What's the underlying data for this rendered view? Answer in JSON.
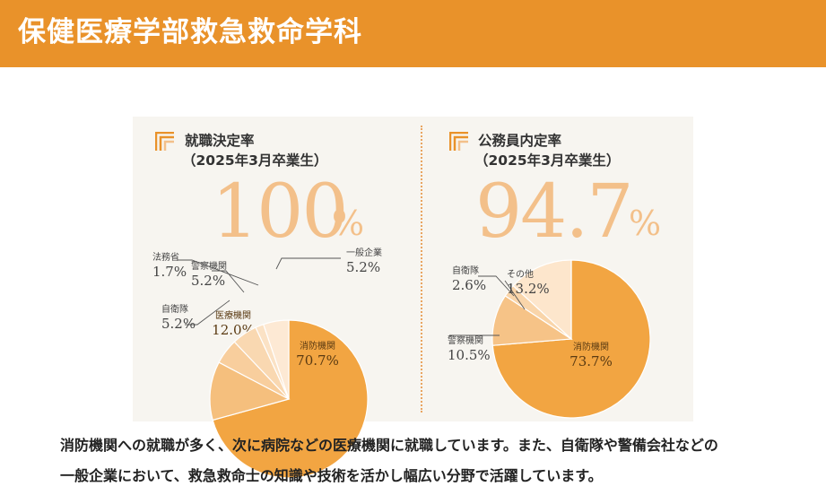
{
  "header": {
    "title": "保健医療学部救急救命学科"
  },
  "chart_data": [
    {
      "type": "pie",
      "title": "就職決定率",
      "subtitle": "（2025年3月卒業生）",
      "rate": "100",
      "rate_unit": "%",
      "slices": [
        {
          "label": "消防機関",
          "value": 70.7,
          "display": "70.7%",
          "color": "#f2a542"
        },
        {
          "label": "医療機関",
          "value": 12.0,
          "display": "12.0%",
          "color": "#f5bf7d"
        },
        {
          "label": "自衛隊",
          "value": 5.2,
          "display": "5.2%",
          "color": "#f8ce9d"
        },
        {
          "label": "警察機関",
          "value": 5.2,
          "display": "5.2%",
          "color": "#f9d8b1"
        },
        {
          "label": "法務省",
          "value": 1.7,
          "display": "1.7%",
          "color": "#fbe2c5"
        },
        {
          "label": "一般企業",
          "value": 5.2,
          "display": "5.2%",
          "color": "#fde9d4"
        }
      ]
    },
    {
      "type": "pie",
      "title": "公務員内定率",
      "subtitle": "（2025年3月卒業生）",
      "rate": "94.7",
      "rate_unit": "%",
      "slices": [
        {
          "label": "消防機関",
          "value": 73.7,
          "display": "73.7%",
          "color": "#f2a542"
        },
        {
          "label": "警察機関",
          "value": 10.5,
          "display": "10.5%",
          "color": "#f6c387"
        },
        {
          "label": "自衛隊",
          "value": 2.6,
          "display": "2.6%",
          "color": "#f9d5aa"
        },
        {
          "label": "その他",
          "value": 13.2,
          "display": "13.2%",
          "color": "#fde6cc"
        }
      ]
    }
  ],
  "description": {
    "line1": "消防機関への就職が多く、次に病院などの医療機関に就職しています。また、自衛隊や警備会社などの",
    "line2": "一般企業において、救急救命士の知識や技術を活かし幅広い分野で活躍しています。"
  }
}
